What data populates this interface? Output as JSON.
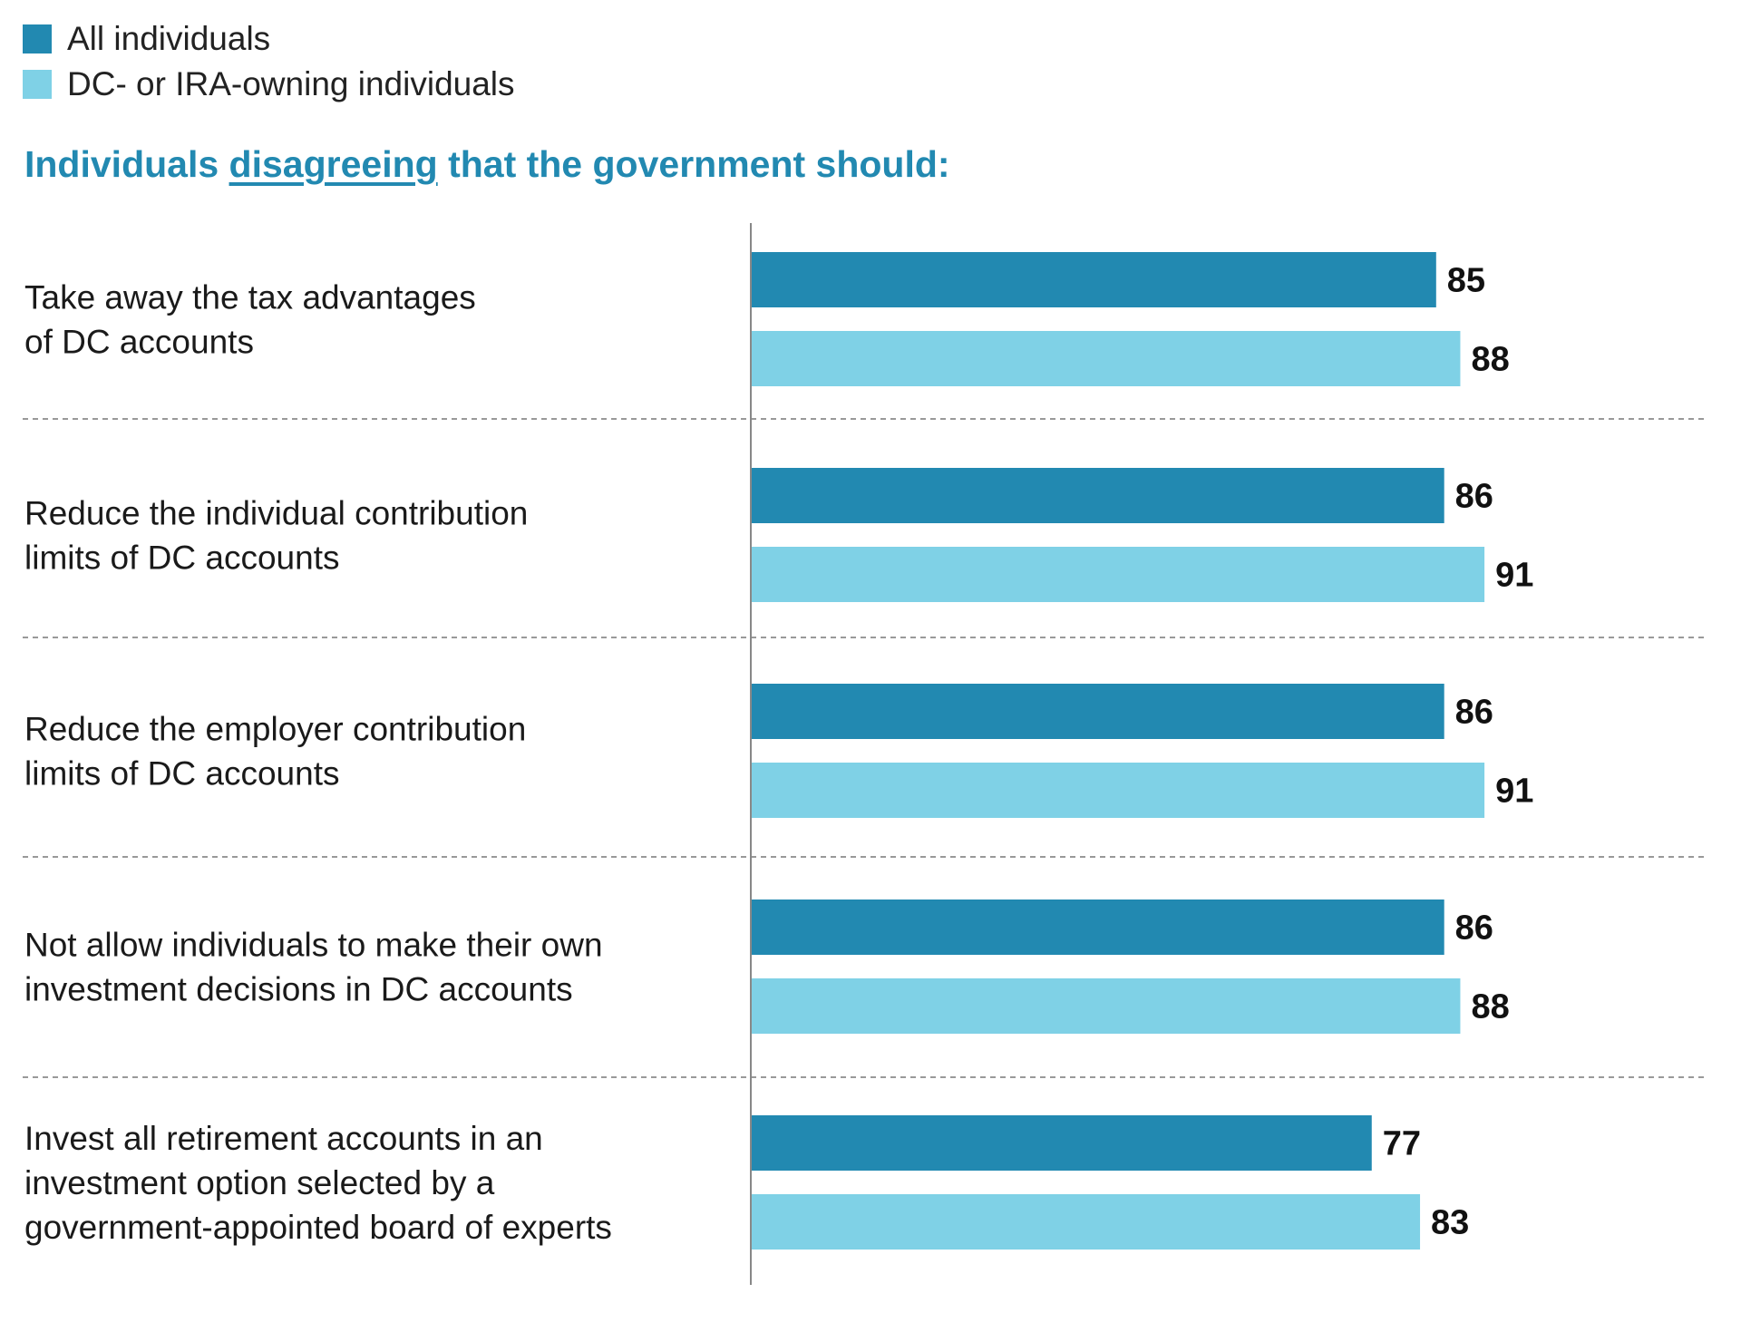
{
  "chart_data": {
    "type": "bar",
    "orientation": "horizontal",
    "title_parts": {
      "before": "Individuals ",
      "underlined": "disagreeing",
      "after": " that the government should:"
    },
    "categories": [
      [
        "Take away the tax advantages",
        "of DC accounts"
      ],
      [
        "Reduce the individual contribution",
        "limits of DC accounts"
      ],
      [
        "Reduce the employer contribution",
        "limits of DC accounts"
      ],
      [
        "Not allow individuals to make their own",
        "investment decisions in DC accounts"
      ],
      [
        "Invest all retirement accounts in an",
        "investment option selected by a",
        "government-appointed board of experts"
      ]
    ],
    "series": [
      {
        "name": "All individuals",
        "color": "#2289b1",
        "values": [
          85,
          86,
          86,
          86,
          77
        ]
      },
      {
        "name": "DC- or IRA-owning individuals",
        "color": "#7fd1e6",
        "values": [
          88,
          91,
          91,
          88,
          83
        ]
      }
    ],
    "xlim": [
      0,
      100
    ],
    "grid": false,
    "separators": "dashed",
    "legend_position": "top-left",
    "data_labels": true
  }
}
